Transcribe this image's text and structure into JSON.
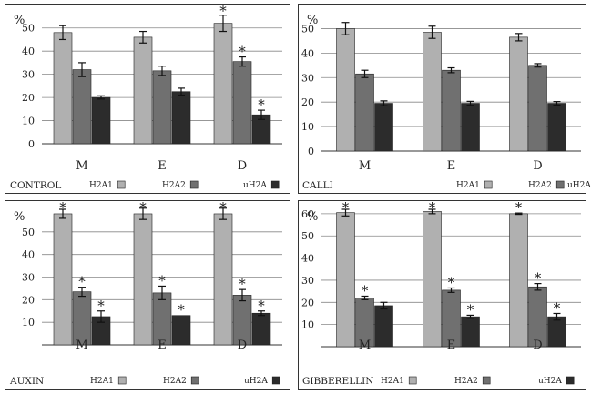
{
  "colors": {
    "H2A1": "#b0b0b0",
    "H2A2": "#707070",
    "uH2A": "#2c2c2c"
  },
  "chart_data": [
    {
      "type": "bar",
      "title": "CONTROL",
      "ylabel": "%",
      "ylim": [
        0,
        55
      ],
      "yticks": [
        0,
        10,
        20,
        30,
        40,
        50
      ],
      "categories": [
        "M",
        "E",
        "D"
      ],
      "series": [
        {
          "name": "H2A1",
          "values": [
            48,
            46,
            52
          ],
          "errors": [
            3,
            2.5,
            3.5
          ],
          "significant": [
            false,
            false,
            true
          ]
        },
        {
          "name": "H2A2",
          "values": [
            32,
            31.5,
            35.5
          ],
          "errors": [
            3,
            2,
            2
          ],
          "significant": [
            false,
            false,
            true
          ]
        },
        {
          "name": "uH2A",
          "values": [
            20,
            22.5,
            12.5
          ],
          "errors": [
            0.7,
            1.5,
            2
          ],
          "significant": [
            false,
            false,
            true
          ]
        }
      ]
    },
    {
      "type": "bar",
      "title": "CALLI",
      "ylabel": "%",
      "ylim": [
        0,
        55
      ],
      "yticks": [
        0,
        10,
        20,
        30,
        40,
        50
      ],
      "categories": [
        "M",
        "E",
        "D"
      ],
      "series": [
        {
          "name": "H2A1",
          "values": [
            50,
            48.5,
            46.5
          ],
          "errors": [
            2.5,
            2.5,
            1.5
          ],
          "significant": [
            false,
            false,
            false
          ]
        },
        {
          "name": "H2A2",
          "values": [
            31.5,
            33,
            35
          ],
          "errors": [
            1.5,
            1,
            0.7
          ],
          "significant": [
            false,
            false,
            false
          ]
        },
        {
          "name": "uH2A",
          "values": [
            19.5,
            19.5,
            19.5
          ],
          "errors": [
            1,
            0.8,
            0.7
          ],
          "significant": [
            false,
            false,
            false
          ]
        }
      ]
    },
    {
      "type": "bar",
      "title": "AUXIN",
      "ylabel": "%",
      "ylim": [
        0,
        60
      ],
      "yticks": [
        10,
        20,
        30,
        40,
        50
      ],
      "categories": [
        "M",
        "E",
        "D"
      ],
      "series": [
        {
          "name": "H2A1",
          "values": [
            58,
            58,
            58
          ],
          "errors": [
            2,
            2.5,
            2.5
          ],
          "significant": [
            true,
            true,
            true
          ]
        },
        {
          "name": "H2A2",
          "values": [
            23.5,
            23,
            22
          ],
          "errors": [
            2,
            3,
            2.5
          ],
          "significant": [
            true,
            true,
            true
          ]
        },
        {
          "name": "uH2A",
          "values": [
            12.5,
            13,
            14
          ],
          "errors": [
            2.5,
            0,
            1
          ],
          "significant": [
            true,
            true,
            true
          ]
        }
      ]
    },
    {
      "type": "bar",
      "title": "GIBBERELLIN",
      "ylabel": "%",
      "ylim": [
        0,
        62
      ],
      "yticks": [
        10,
        20,
        30,
        40,
        50,
        60
      ],
      "categories": [
        "M",
        "E",
        "D"
      ],
      "series": [
        {
          "name": "H2A1",
          "values": [
            60.5,
            61,
            60
          ],
          "errors": [
            1.5,
            1,
            0.3
          ],
          "significant": [
            true,
            true,
            true
          ]
        },
        {
          "name": "H2A2",
          "values": [
            22,
            25.5,
            27
          ],
          "errors": [
            0.8,
            1,
            1.5
          ],
          "significant": [
            true,
            true,
            true
          ]
        },
        {
          "name": "uH2A",
          "values": [
            18.5,
            13.5,
            13.5
          ],
          "errors": [
            1.5,
            0.7,
            1.5
          ],
          "significant": [
            false,
            true,
            true
          ]
        }
      ]
    }
  ],
  "marker": "*"
}
